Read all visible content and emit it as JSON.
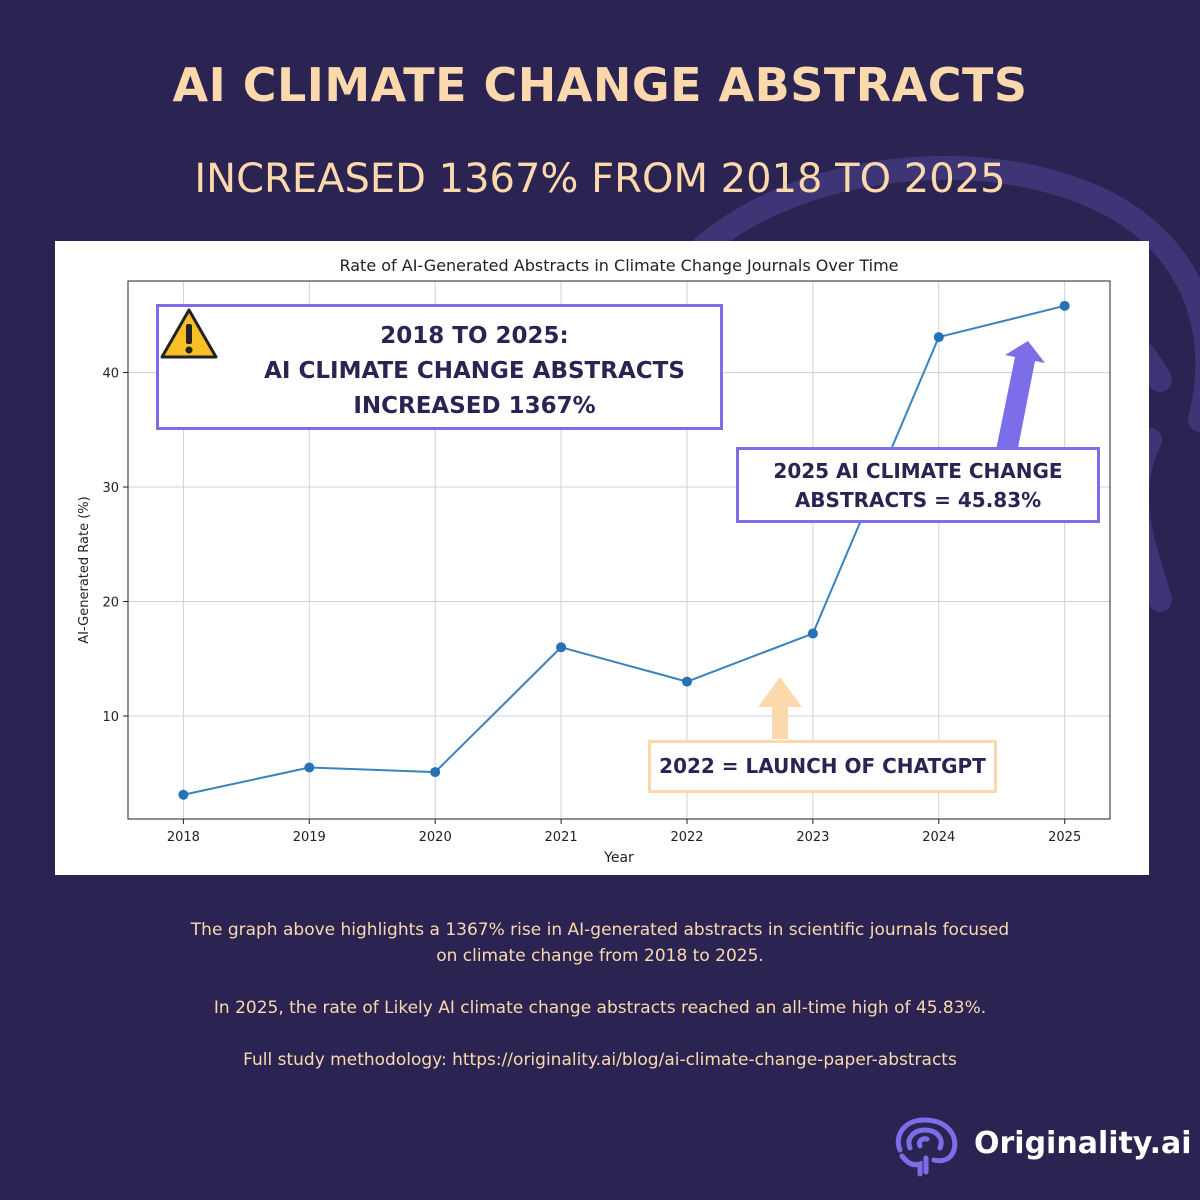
{
  "header": {
    "title": "AI CLIMATE CHANGE ABSTRACTS",
    "subtitle": "INCREASED 1367% FROM 2018 TO 2025"
  },
  "chart_data": {
    "type": "line",
    "title": "Rate of AI-Generated Abstracts in Climate Change Journals Over Time",
    "xlabel": "Year",
    "ylabel": "AI-Generated Rate (%)",
    "x": [
      2018,
      2019,
      2020,
      2021,
      2022,
      2023,
      2024,
      2025
    ],
    "y": [
      3.12,
      5.5,
      5.1,
      16.0,
      13.0,
      17.2,
      43.1,
      45.83
    ],
    "xticks": [
      "2018",
      "2019",
      "2020",
      "2021",
      "2022",
      "2023",
      "2024",
      "2025"
    ],
    "yticks": [
      10,
      20,
      30,
      40
    ],
    "ylim": [
      1.0,
      48.0
    ],
    "xlim": [
      2017.56,
      2025.36
    ],
    "grid": true,
    "line_color": "#3a83c0"
  },
  "callouts": {
    "main_line1": "2018 TO 2025:",
    "main_line2": "AI CLIMATE CHANGE ABSTRACTS",
    "main_line3": "INCREASED 1367%",
    "peak_line1": "2025 AI CLIMATE CHANGE",
    "peak_line2": "ABSTRACTS = 45.83%",
    "chatgpt": "2022 = LAUNCH OF CHATGPT"
  },
  "footer": {
    "line1": "The graph above highlights a 1367% rise in AI-generated abstracts in scientific journals focused",
    "line2": "on climate change from 2018 to 2025.",
    "line3": "In 2025, the rate of Likely AI climate change abstracts reached an all-time high of 45.83%.",
    "line4": "Full study methodology: https://originality.ai/blog/ai-climate-change-paper-abstracts"
  },
  "brand": {
    "name": "Originality.ai",
    "logo_icon": "brain-icon"
  },
  "colors": {
    "background": "#2b2452",
    "accent_peach": "#fbd9ac",
    "accent_purple": "#7c6ee8",
    "warning_yellow": "#f8bf26"
  }
}
